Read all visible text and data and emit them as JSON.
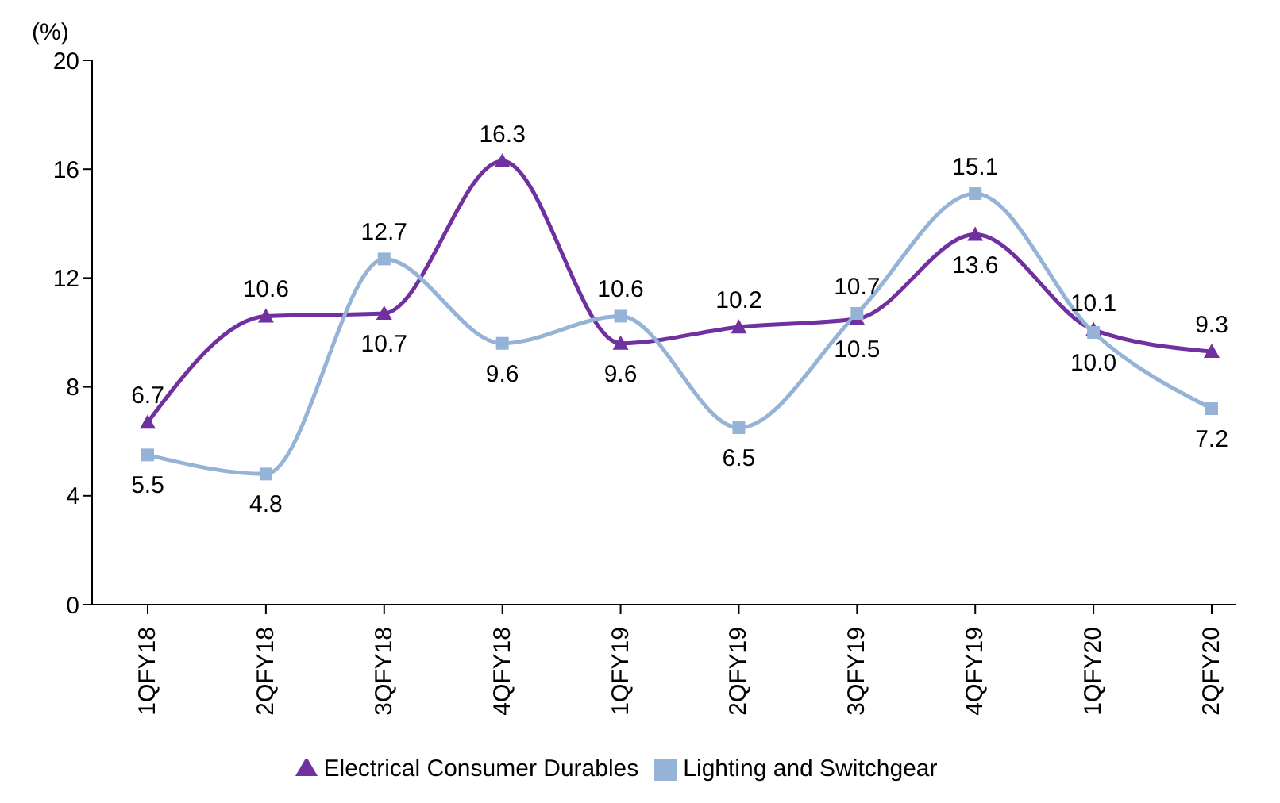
{
  "chart_data": {
    "type": "line",
    "ylabel": "(%)",
    "categories": [
      "1QFY18",
      "2QFY18",
      "3QFY18",
      "4QFY18",
      "1QFY19",
      "2QFY19",
      "3QFY19",
      "4QFY19",
      "1QFY20",
      "2QFY20"
    ],
    "series": [
      {
        "name": "Electrical Consumer Durables",
        "color": "#7030a0",
        "marker": "triangle",
        "values": [
          6.7,
          10.6,
          10.7,
          16.3,
          9.6,
          10.2,
          10.5,
          13.6,
          10.1,
          9.3
        ],
        "value_labels": [
          "6.7",
          "10.6",
          "10.7",
          "16.3",
          "9.6",
          "10.2",
          "10.5",
          "13.6",
          "10.1",
          "9.3"
        ]
      },
      {
        "name": "Lighting and Switchgear",
        "color": "#95b3d7",
        "marker": "square",
        "values": [
          5.5,
          4.8,
          12.7,
          9.6,
          10.6,
          6.5,
          10.7,
          15.1,
          10.0,
          7.2
        ],
        "value_labels": [
          "5.5",
          "4.8",
          "12.7",
          "9.6",
          "10.6",
          "6.5",
          "10.7",
          "15.1",
          "10.0",
          "7.2"
        ]
      }
    ],
    "ylim": [
      0,
      20
    ],
    "yticks": [
      0,
      4,
      8,
      12,
      16,
      20
    ],
    "legend": "bottom",
    "line_style": "solid"
  }
}
